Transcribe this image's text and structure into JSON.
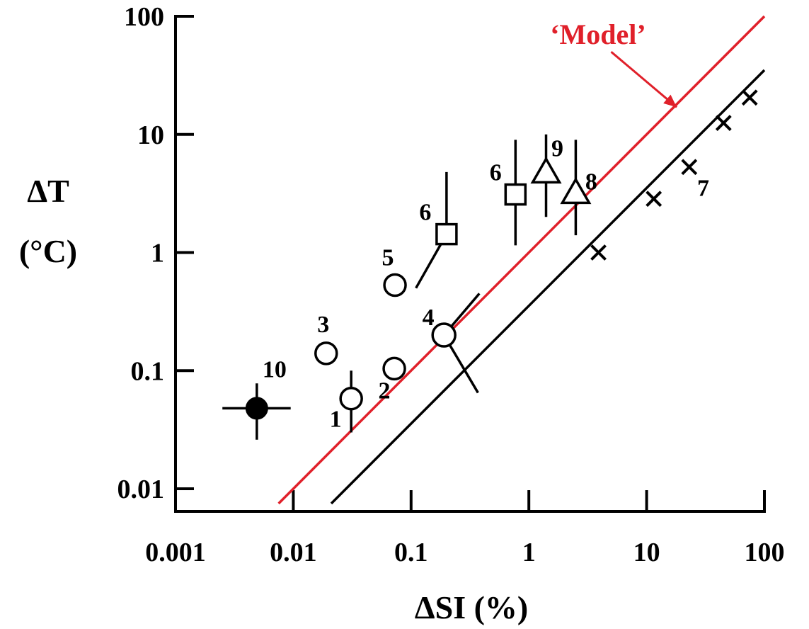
{
  "chart_data": {
    "type": "scatter",
    "xscale": "log",
    "yscale": "log",
    "xlim": [
      0.001,
      100
    ],
    "ylim": [
      0.01,
      100
    ],
    "xlabel": "ΔSI (%)",
    "ylabel_line1": "ΔT",
    "ylabel_line2": "(°C)",
    "xticks": [
      0.001,
      0.01,
      0.1,
      1,
      10,
      100
    ],
    "xtick_labels": [
      "0.001",
      "0.01",
      "0.1",
      "1",
      "10",
      "100"
    ],
    "yticks": [
      0.01,
      0.1,
      1,
      10,
      100
    ],
    "ytick_labels": [
      "0.01",
      "0.1",
      "1",
      "10",
      "100"
    ],
    "grid": false,
    "colors": {
      "model": "#e0202a",
      "ink": "#000000"
    },
    "model_label": "‘Model’",
    "model_line": [
      [
        0.0075,
        0.0075
      ],
      [
        100,
        100
      ]
    ],
    "model_arrow": {
      "from": [
        5,
        50
      ],
      "to": [
        18,
        17
      ]
    },
    "black_line": [
      [
        0.021,
        0.0075
      ],
      [
        100,
        35
      ]
    ],
    "points": [
      {
        "label": "1",
        "marker": "open-circle",
        "x": 0.031,
        "y": 0.058,
        "err_y": [
          0.03,
          0.1
        ]
      },
      {
        "label": "2",
        "marker": "open-circle",
        "x": 0.072,
        "y": 0.104
      },
      {
        "label": "3",
        "marker": "open-circle",
        "x": 0.019,
        "y": 0.14
      },
      {
        "label": "4",
        "marker": "open-circle",
        "x": 0.19,
        "y": 0.2,
        "diag": [
          [
            0.38,
            0.45
          ],
          [
            0.37,
            0.065
          ]
        ]
      },
      {
        "label": "5",
        "marker": "open-circle",
        "x": 0.073,
        "y": 0.53
      },
      {
        "label": "6",
        "marker": "open-square",
        "x": 0.2,
        "y": 1.43,
        "err_y": [
          1.43,
          4.8
        ],
        "tail": [
          0.11,
          0.5
        ]
      },
      {
        "label": "6",
        "marker": "open-square",
        "x": 0.77,
        "y": 3.1,
        "err_y": [
          1.15,
          9
        ]
      },
      {
        "label": "8",
        "marker": "open-triangle",
        "x": 2.5,
        "y": 3.15,
        "err_y": [
          1.4,
          9
        ]
      },
      {
        "label": "9",
        "marker": "open-triangle",
        "x": 1.4,
        "y": 4.7,
        "err_y": [
          2,
          10
        ]
      },
      {
        "label": "10",
        "marker": "filled-circle",
        "x": 0.0049,
        "y": 0.048,
        "err_x": [
          0.0025,
          0.0095
        ],
        "err_y": [
          0.026,
          0.078
        ]
      },
      {
        "label": "7",
        "marker": "cross",
        "x": 3.9,
        "y": 1.0
      },
      {
        "label": "",
        "marker": "cross",
        "x": 11.5,
        "y": 2.85
      },
      {
        "label": "",
        "marker": "cross",
        "x": 23,
        "y": 5.3
      },
      {
        "label": "",
        "marker": "cross",
        "x": 45,
        "y": 12.5
      },
      {
        "label": "",
        "marker": "cross",
        "x": 75,
        "y": 20.5
      }
    ]
  }
}
